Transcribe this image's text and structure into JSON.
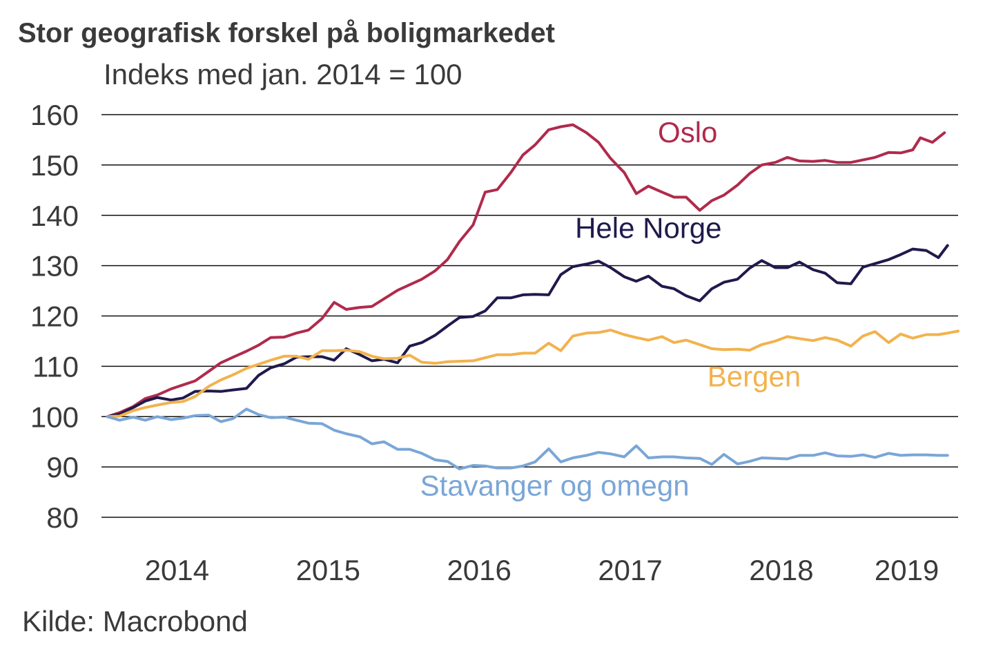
{
  "chart_data": {
    "type": "line",
    "title": "Stor geografisk forskel på boligmarkedet",
    "subtitle": "Indeks med jan. 2014 = 100",
    "source": "Kilde: Macrobond",
    "xlabel": "",
    "ylabel": "",
    "ylim": [
      80,
      160
    ],
    "yticks": [
      160,
      150,
      140,
      130,
      120,
      110,
      100,
      90,
      80
    ],
    "xlim": [
      2013.96,
      2019.63
    ],
    "xtick_labels": [
      "2014",
      "2015",
      "2016",
      "2017",
      "2018",
      "2019"
    ],
    "xtick_values": [
      2014.46,
      2015.46,
      2016.46,
      2017.46,
      2018.46,
      2019.29
    ],
    "grid": true,
    "series": [
      {
        "name": "Oslo",
        "color": "#b02a4c",
        "label_x": 2017.84,
        "label_y": 154.5,
        "points": [
          [
            2014.0,
            100.0
          ],
          [
            2014.08,
            100.8
          ],
          [
            2014.17,
            102.0
          ],
          [
            2014.25,
            103.6
          ],
          [
            2014.33,
            104.3
          ],
          [
            2014.42,
            105.5
          ],
          [
            2014.5,
            106.3
          ],
          [
            2014.58,
            107.1
          ],
          [
            2014.67,
            109.0
          ],
          [
            2014.75,
            110.7
          ],
          [
            2014.83,
            111.8
          ],
          [
            2014.92,
            113.0
          ],
          [
            2015.0,
            114.2
          ],
          [
            2015.08,
            115.7
          ],
          [
            2015.17,
            115.8
          ],
          [
            2015.25,
            116.6
          ],
          [
            2015.33,
            117.2
          ],
          [
            2015.42,
            119.5
          ],
          [
            2015.5,
            122.7
          ],
          [
            2015.58,
            121.3
          ],
          [
            2015.67,
            121.7
          ],
          [
            2015.75,
            121.9
          ],
          [
            2015.83,
            123.4
          ],
          [
            2015.92,
            125.1
          ],
          [
            2016.0,
            126.2
          ],
          [
            2016.08,
            127.3
          ],
          [
            2016.17,
            129.0
          ],
          [
            2016.25,
            131.2
          ],
          [
            2016.33,
            134.8
          ],
          [
            2016.42,
            138.1
          ],
          [
            2016.5,
            144.6
          ],
          [
            2016.58,
            145.1
          ],
          [
            2016.67,
            148.5
          ],
          [
            2016.75,
            152.0
          ],
          [
            2016.83,
            154.0
          ],
          [
            2016.92,
            157.0
          ],
          [
            2017.0,
            157.6
          ],
          [
            2017.08,
            158.0
          ],
          [
            2017.17,
            156.4
          ],
          [
            2017.25,
            154.5
          ],
          [
            2017.33,
            151.3
          ],
          [
            2017.42,
            148.5
          ],
          [
            2017.5,
            144.3
          ],
          [
            2017.58,
            145.8
          ],
          [
            2017.67,
            144.6
          ],
          [
            2017.75,
            143.6
          ],
          [
            2017.83,
            143.6
          ],
          [
            2017.92,
            141.0
          ],
          [
            2018.0,
            142.9
          ],
          [
            2018.08,
            144.0
          ],
          [
            2018.17,
            146.0
          ],
          [
            2018.25,
            148.3
          ],
          [
            2018.33,
            150.0
          ],
          [
            2018.42,
            150.5
          ],
          [
            2018.5,
            151.5
          ],
          [
            2018.58,
            150.8
          ],
          [
            2018.67,
            150.7
          ],
          [
            2018.75,
            150.9
          ],
          [
            2018.83,
            150.5
          ],
          [
            2018.92,
            150.5
          ],
          [
            2019.0,
            151.0
          ],
          [
            2019.08,
            151.5
          ],
          [
            2019.17,
            152.5
          ],
          [
            2019.25,
            152.4
          ],
          [
            2019.33,
            153.0
          ],
          [
            2019.38,
            155.4
          ],
          [
            2019.46,
            154.5
          ],
          [
            2019.54,
            156.4
          ]
        ]
      },
      {
        "name": "Hele Norge",
        "color": "#1f1a4c",
        "label_x": 2017.58,
        "label_y": 135.5,
        "points": [
          [
            2014.0,
            100.0
          ],
          [
            2014.08,
            100.5
          ],
          [
            2014.17,
            101.8
          ],
          [
            2014.25,
            103.1
          ],
          [
            2014.33,
            103.8
          ],
          [
            2014.42,
            103.3
          ],
          [
            2014.5,
            103.7
          ],
          [
            2014.58,
            105.0
          ],
          [
            2014.67,
            105.1
          ],
          [
            2014.75,
            105.0
          ],
          [
            2014.83,
            105.3
          ],
          [
            2014.92,
            105.6
          ],
          [
            2015.0,
            108.2
          ],
          [
            2015.08,
            109.7
          ],
          [
            2015.17,
            110.5
          ],
          [
            2015.25,
            111.8
          ],
          [
            2015.33,
            111.9
          ],
          [
            2015.42,
            111.9
          ],
          [
            2015.5,
            111.2
          ],
          [
            2015.58,
            113.5
          ],
          [
            2015.67,
            112.3
          ],
          [
            2015.75,
            111.1
          ],
          [
            2015.83,
            111.4
          ],
          [
            2015.92,
            110.7
          ],
          [
            2016.0,
            114.0
          ],
          [
            2016.08,
            114.7
          ],
          [
            2016.17,
            116.2
          ],
          [
            2016.25,
            118.0
          ],
          [
            2016.33,
            119.7
          ],
          [
            2016.42,
            119.9
          ],
          [
            2016.5,
            121.0
          ],
          [
            2016.58,
            123.6
          ],
          [
            2016.67,
            123.6
          ],
          [
            2016.75,
            124.2
          ],
          [
            2016.83,
            124.3
          ],
          [
            2016.92,
            124.2
          ],
          [
            2017.0,
            128.2
          ],
          [
            2017.08,
            129.8
          ],
          [
            2017.17,
            130.3
          ],
          [
            2017.25,
            130.9
          ],
          [
            2017.33,
            129.6
          ],
          [
            2017.42,
            127.8
          ],
          [
            2017.5,
            126.9
          ],
          [
            2017.58,
            127.9
          ],
          [
            2017.67,
            125.9
          ],
          [
            2017.75,
            125.4
          ],
          [
            2017.83,
            124.0
          ],
          [
            2017.92,
            123.0
          ],
          [
            2018.0,
            125.4
          ],
          [
            2018.08,
            126.7
          ],
          [
            2018.17,
            127.3
          ],
          [
            2018.25,
            129.5
          ],
          [
            2018.33,
            131.0
          ],
          [
            2018.42,
            129.6
          ],
          [
            2018.5,
            129.6
          ],
          [
            2018.58,
            130.7
          ],
          [
            2018.67,
            129.2
          ],
          [
            2018.75,
            128.5
          ],
          [
            2018.83,
            126.6
          ],
          [
            2018.92,
            126.4
          ],
          [
            2019.0,
            129.7
          ],
          [
            2019.08,
            130.4
          ],
          [
            2019.17,
            131.2
          ],
          [
            2019.25,
            132.2
          ],
          [
            2019.33,
            133.3
          ],
          [
            2019.42,
            133.0
          ],
          [
            2019.5,
            131.6
          ],
          [
            2019.56,
            134.0
          ]
        ]
      },
      {
        "name": "Bergen",
        "color": "#f2b24d",
        "label_x": 2018.28,
        "label_y": 106.0,
        "points": [
          [
            2014.0,
            100.0
          ],
          [
            2014.08,
            100.1
          ],
          [
            2014.17,
            101.2
          ],
          [
            2014.25,
            101.8
          ],
          [
            2014.33,
            102.3
          ],
          [
            2014.42,
            102.8
          ],
          [
            2014.5,
            103.0
          ],
          [
            2014.58,
            104.0
          ],
          [
            2014.67,
            106.0
          ],
          [
            2014.75,
            107.3
          ],
          [
            2014.83,
            108.3
          ],
          [
            2014.92,
            109.6
          ],
          [
            2015.0,
            110.4
          ],
          [
            2015.08,
            111.2
          ],
          [
            2015.17,
            112.0
          ],
          [
            2015.25,
            112.0
          ],
          [
            2015.33,
            111.4
          ],
          [
            2015.42,
            113.1
          ],
          [
            2015.5,
            113.1
          ],
          [
            2015.58,
            113.2
          ],
          [
            2015.67,
            112.9
          ],
          [
            2015.75,
            112.0
          ],
          [
            2015.83,
            111.5
          ],
          [
            2015.92,
            111.6
          ],
          [
            2016.0,
            112.2
          ],
          [
            2016.08,
            110.8
          ],
          [
            2016.17,
            110.6
          ],
          [
            2016.25,
            110.9
          ],
          [
            2016.33,
            111.0
          ],
          [
            2016.42,
            111.1
          ],
          [
            2016.5,
            111.7
          ],
          [
            2016.58,
            112.3
          ],
          [
            2016.67,
            112.3
          ],
          [
            2016.75,
            112.6
          ],
          [
            2016.83,
            112.6
          ],
          [
            2016.92,
            114.6
          ],
          [
            2017.0,
            113.1
          ],
          [
            2017.08,
            116.0
          ],
          [
            2017.17,
            116.6
          ],
          [
            2017.25,
            116.7
          ],
          [
            2017.33,
            117.2
          ],
          [
            2017.42,
            116.3
          ],
          [
            2017.5,
            115.7
          ],
          [
            2017.58,
            115.2
          ],
          [
            2017.67,
            115.9
          ],
          [
            2017.75,
            114.7
          ],
          [
            2017.83,
            115.2
          ],
          [
            2017.92,
            114.3
          ],
          [
            2018.0,
            113.5
          ],
          [
            2018.08,
            113.3
          ],
          [
            2018.17,
            113.4
          ],
          [
            2018.25,
            113.2
          ],
          [
            2018.33,
            114.3
          ],
          [
            2018.42,
            115.0
          ],
          [
            2018.5,
            115.9
          ],
          [
            2018.58,
            115.5
          ],
          [
            2018.67,
            115.1
          ],
          [
            2018.75,
            115.7
          ],
          [
            2018.83,
            115.2
          ],
          [
            2018.92,
            114.0
          ],
          [
            2019.0,
            116.0
          ],
          [
            2019.08,
            116.9
          ],
          [
            2019.17,
            114.7
          ],
          [
            2019.25,
            116.4
          ],
          [
            2019.33,
            115.6
          ],
          [
            2019.42,
            116.3
          ],
          [
            2019.5,
            116.3
          ],
          [
            2019.56,
            116.6
          ],
          [
            2019.63,
            117.0
          ]
        ]
      },
      {
        "name": "Stavanger og omegn",
        "color": "#7aa6d6",
        "label_x": 2016.96,
        "label_y": 84.3,
        "points": [
          [
            2014.0,
            100.0
          ],
          [
            2014.08,
            99.3
          ],
          [
            2014.17,
            99.9
          ],
          [
            2014.25,
            99.3
          ],
          [
            2014.33,
            100.0
          ],
          [
            2014.42,
            99.4
          ],
          [
            2014.5,
            99.7
          ],
          [
            2014.58,
            100.2
          ],
          [
            2014.67,
            100.3
          ],
          [
            2014.75,
            99.0
          ],
          [
            2014.83,
            99.6
          ],
          [
            2014.92,
            101.5
          ],
          [
            2015.0,
            100.4
          ],
          [
            2015.08,
            99.8
          ],
          [
            2015.17,
            99.9
          ],
          [
            2015.25,
            99.3
          ],
          [
            2015.33,
            98.7
          ],
          [
            2015.42,
            98.6
          ],
          [
            2015.5,
            97.3
          ],
          [
            2015.58,
            96.6
          ],
          [
            2015.67,
            96.0
          ],
          [
            2015.75,
            94.6
          ],
          [
            2015.83,
            95.0
          ],
          [
            2015.92,
            93.5
          ],
          [
            2016.0,
            93.5
          ],
          [
            2016.08,
            92.7
          ],
          [
            2016.17,
            91.4
          ],
          [
            2016.25,
            91.1
          ],
          [
            2016.33,
            89.6
          ],
          [
            2016.42,
            90.3
          ],
          [
            2016.5,
            90.2
          ],
          [
            2016.58,
            89.8
          ],
          [
            2016.67,
            89.8
          ],
          [
            2016.75,
            90.2
          ],
          [
            2016.83,
            91.0
          ],
          [
            2016.92,
            93.6
          ],
          [
            2017.0,
            91.0
          ],
          [
            2017.08,
            91.8
          ],
          [
            2017.17,
            92.3
          ],
          [
            2017.25,
            92.9
          ],
          [
            2017.33,
            92.6
          ],
          [
            2017.42,
            92.0
          ],
          [
            2017.5,
            94.2
          ],
          [
            2017.58,
            91.8
          ],
          [
            2017.67,
            92.0
          ],
          [
            2017.75,
            92.0
          ],
          [
            2017.83,
            91.8
          ],
          [
            2017.92,
            91.7
          ],
          [
            2018.0,
            90.5
          ],
          [
            2018.08,
            92.5
          ],
          [
            2018.17,
            90.6
          ],
          [
            2018.25,
            91.1
          ],
          [
            2018.33,
            91.8
          ],
          [
            2018.42,
            91.7
          ],
          [
            2018.5,
            91.6
          ],
          [
            2018.58,
            92.3
          ],
          [
            2018.67,
            92.3
          ],
          [
            2018.75,
            92.8
          ],
          [
            2018.83,
            92.2
          ],
          [
            2018.92,
            92.1
          ],
          [
            2019.0,
            92.4
          ],
          [
            2019.08,
            91.9
          ],
          [
            2019.17,
            92.7
          ],
          [
            2019.25,
            92.3
          ],
          [
            2019.33,
            92.4
          ],
          [
            2019.42,
            92.4
          ],
          [
            2019.5,
            92.3
          ],
          [
            2019.56,
            92.3
          ]
        ]
      }
    ]
  },
  "colors": {
    "text": "#3a3a3a",
    "grid": "#111111",
    "background": "#ffffff"
  }
}
